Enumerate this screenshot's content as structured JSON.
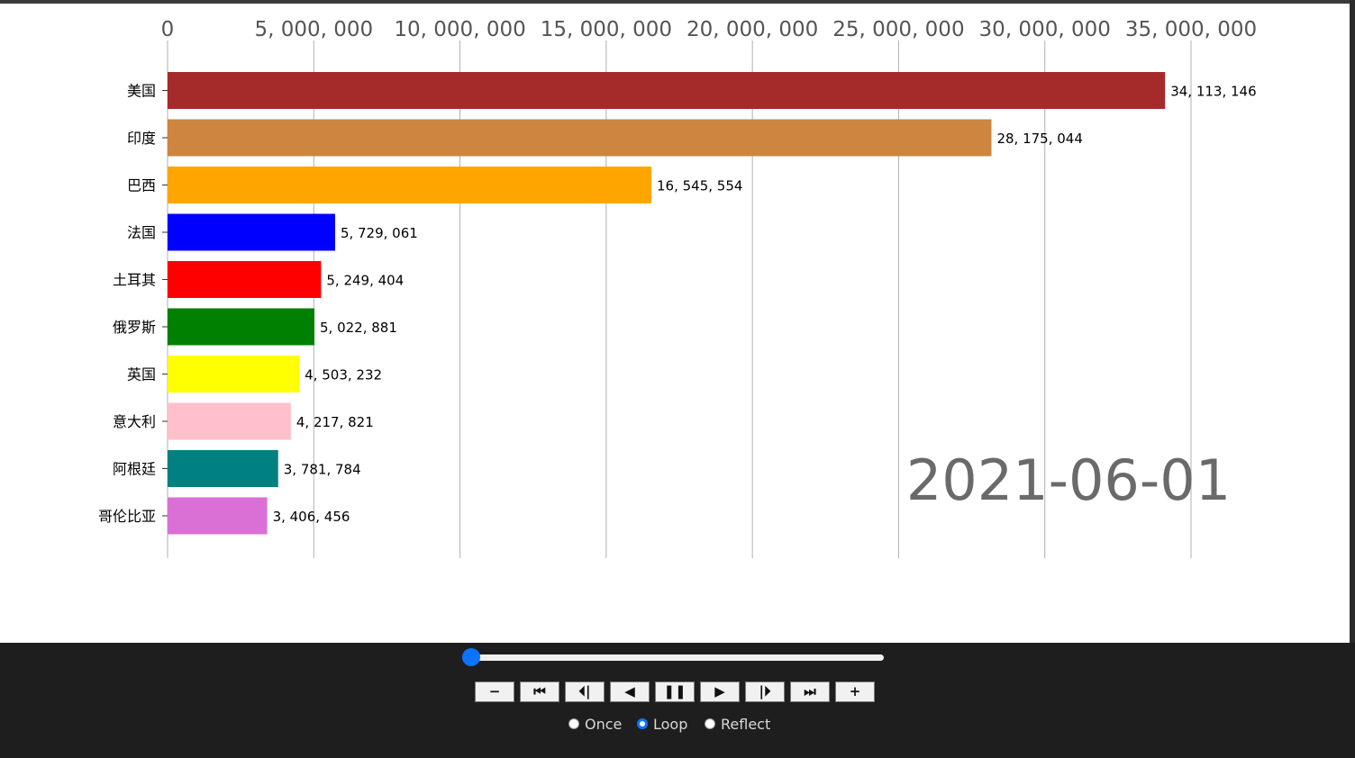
{
  "chart_data": {
    "type": "bar",
    "orientation": "horizontal",
    "categories": [
      "美国",
      "印度",
      "巴西",
      "法国",
      "土耳其",
      "俄罗斯",
      "英国",
      "意大利",
      "阿根廷",
      "哥伦比亚"
    ],
    "values": [
      34113146,
      28175044,
      16545554,
      5729061,
      5249404,
      5022881,
      4503232,
      4217821,
      3781784,
      3406456
    ],
    "value_labels": [
      "34, 113, 146",
      "28, 175, 044",
      "16, 545, 554",
      "5, 729, 061",
      "5, 249, 404",
      "5, 022, 881",
      "4, 503, 232",
      "4, 217, 821",
      "3, 781, 784",
      "3, 406, 456"
    ],
    "colors": [
      "#a52a2a",
      "#cd853f",
      "#ffa500",
      "#0000ff",
      "#ff0000",
      "#008000",
      "#ffff00",
      "#ffc0cb",
      "#008080",
      "#da70d6"
    ],
    "xlim": [
      0,
      35000000
    ],
    "xticks": [
      0,
      5000000,
      10000000,
      15000000,
      20000000,
      25000000,
      30000000,
      35000000
    ],
    "xtick_labels": [
      "0",
      "5, 000, 000",
      "10, 000, 000",
      "15, 000, 000",
      "20, 000, 000",
      "25, 000, 000",
      "30, 000, 000",
      "35, 000, 000"
    ],
    "x_axis_position": "top",
    "grid": "vertical",
    "date": "2021-06-01"
  },
  "controls": {
    "slider_fraction": 0,
    "buttons": [
      {
        "name": "decrease-speed-button",
        "glyph": "−"
      },
      {
        "name": "first-frame-button",
        "glyph": "⏮"
      },
      {
        "name": "step-back-button",
        "glyph": "⏴|"
      },
      {
        "name": "play-reverse-button",
        "glyph": "◀"
      },
      {
        "name": "pause-button",
        "glyph": "❚❚"
      },
      {
        "name": "play-button",
        "glyph": "▶"
      },
      {
        "name": "step-forward-button",
        "glyph": "|⏵"
      },
      {
        "name": "last-frame-button",
        "glyph": "⏭"
      },
      {
        "name": "increase-speed-button",
        "glyph": "+"
      }
    ],
    "modes": [
      {
        "label": "Once",
        "checked": false
      },
      {
        "label": "Loop",
        "checked": true
      },
      {
        "label": "Reflect",
        "checked": false
      }
    ]
  }
}
